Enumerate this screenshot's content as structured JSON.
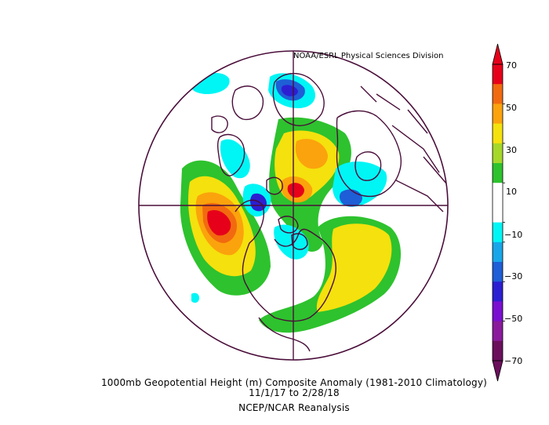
{
  "credit": "NOAA/ESRL Physical Sciences Division",
  "caption": {
    "title": "1000mb Geopotential Height (m) Composite Anomaly (1981-2010 Climatology)",
    "dates": "11/1/17  to 2/28/18",
    "source": "NCEP/NCAR Reanalysis"
  },
  "colorbar": {
    "labels": [
      "70",
      "50",
      "30",
      "10",
      "−10",
      "−30",
      "−50",
      "−70"
    ],
    "colors": [
      "#e6001a",
      "#f26a0f",
      "#fba30c",
      "#f5e10d",
      "#a5d82a",
      "#2ec22e",
      "#ffffff",
      "#ffffff",
      "#00f5f5",
      "#18a6e8",
      "#1e5ed6",
      "#2c1fd2",
      "#7a0fd0",
      "#8a1a9b",
      "#6b0f5c"
    ]
  },
  "colors": {
    "coast": "#4a0e3a",
    "red": "#e6001a",
    "orange": "#f26a0f",
    "light_orange": "#fba30c",
    "yellow": "#f5e10d",
    "yellow_green": "#a5d82a",
    "green": "#2ec22e",
    "cyan": "#00f5f5",
    "blue": "#1e5ed6",
    "dark_blue": "#2c1fd2"
  }
}
